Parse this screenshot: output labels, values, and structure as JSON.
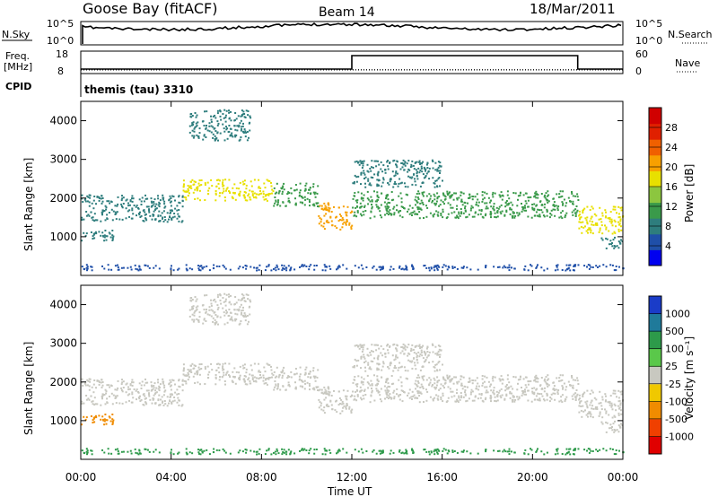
{
  "header": {
    "station": "Goose Bay (fitACF)",
    "beam": "Beam 14",
    "date": "18/Mar/2011"
  },
  "noise_panel": {
    "left_label": "N.Sky",
    "right_label": "N.Search",
    "left_ticks": [
      "10^5",
      "10^0"
    ],
    "right_ticks": [
      "10^5",
      "10^0"
    ]
  },
  "freq_panel": {
    "left_label_1": "Freq.",
    "left_label_2": "[MHz]",
    "right_label": "Nave",
    "left_ticks": [
      "18",
      "8"
    ],
    "right_ticks": [
      "60",
      "0"
    ]
  },
  "cpid_panel": {
    "label": "CPID",
    "text": "themis (tau) 3310"
  },
  "power_colorbar": {
    "title": "Power [dB]",
    "ticks": [
      "4",
      "8",
      "12",
      "16",
      "20",
      "24",
      "28"
    ],
    "colors": [
      "#0000f0",
      "#1f4fa8",
      "#2e7d7d",
      "#3a9a4a",
      "#8cc63f",
      "#e8e000",
      "#f7a000",
      "#f06000",
      "#e02000",
      "#d00000"
    ]
  },
  "velocity_colorbar": {
    "title": "Velocity [m s⁻¹]",
    "ticks": [
      "1000",
      "500",
      "100",
      "25",
      "-25",
      "-100",
      "-500",
      "-1000"
    ],
    "colors": [
      "#1a3cc8",
      "#1f7a9a",
      "#2d9a4a",
      "#5ac84a",
      "#c8c8c0",
      "#f0c800",
      "#f08c00",
      "#f04000",
      "#e00000"
    ]
  },
  "chart_data": {
    "type": "heatmap",
    "xlabel": "Time UT",
    "x_tick_labels": [
      "00:00",
      "04:00",
      "08:00",
      "12:00",
      "16:00",
      "20:00",
      "00:00"
    ],
    "xlim_hours": [
      0,
      24
    ],
    "panels": [
      {
        "name": "power",
        "ylabel": "Slant Range [km]",
        "ylim": [
          0,
          4500
        ],
        "y_ticks": [
          1000,
          2000,
          3000,
          4000
        ],
        "colorbar_title": "Power [dB]",
        "echo_bands": [
          {
            "start_hour": 0.0,
            "end_hour": 1.5,
            "low_km": 900,
            "high_km": 1200,
            "power_db": 8
          },
          {
            "start_hour": 0.0,
            "end_hour": 4.5,
            "low_km": 1400,
            "high_km": 2100,
            "power_db": 8
          },
          {
            "start_hour": 4.5,
            "end_hour": 8.5,
            "low_km": 1950,
            "high_km": 2500,
            "power_db": 16
          },
          {
            "start_hour": 4.8,
            "end_hour": 7.5,
            "low_km": 3500,
            "high_km": 4300,
            "power_db": 8
          },
          {
            "start_hour": 8.5,
            "end_hour": 10.5,
            "low_km": 1800,
            "high_km": 2400,
            "power_db": 12
          },
          {
            "start_hour": 10.5,
            "end_hour": 12.0,
            "low_km": 1200,
            "high_km": 1900,
            "power_db": 20
          },
          {
            "start_hour": 12.0,
            "end_hour": 22.0,
            "low_km": 1500,
            "high_km": 2200,
            "power_db": 12
          },
          {
            "start_hour": 12.0,
            "end_hour": 16.0,
            "low_km": 2300,
            "high_km": 3000,
            "power_db": 8
          },
          {
            "start_hour": 22.0,
            "end_hour": 24.0,
            "low_km": 1100,
            "high_km": 1800,
            "power_db": 16
          },
          {
            "start_hour": 23.0,
            "end_hour": 24.0,
            "low_km": 700,
            "high_km": 1000,
            "power_db": 8
          },
          {
            "start_hour": 0.0,
            "end_hour": 24.0,
            "low_km": 150,
            "high_km": 300,
            "power_db": 4
          }
        ]
      },
      {
        "name": "velocity",
        "ylabel": "Slant Range [km]",
        "ylim": [
          0,
          4500
        ],
        "y_ticks": [
          1000,
          2000,
          3000,
          4000
        ],
        "colorbar_title": "Velocity [m s⁻¹]",
        "echo_bands": [
          {
            "start_hour": 0.0,
            "end_hour": 1.5,
            "low_km": 900,
            "high_km": 1200,
            "velocity_ms": -100
          },
          {
            "start_hour": 0.0,
            "end_hour": 4.5,
            "low_km": 1400,
            "high_km": 2100,
            "velocity_ms": 0
          },
          {
            "start_hour": 4.5,
            "end_hour": 8.5,
            "low_km": 1950,
            "high_km": 2500,
            "velocity_ms": 0
          },
          {
            "start_hour": 4.8,
            "end_hour": 7.5,
            "low_km": 3500,
            "high_km": 4300,
            "velocity_ms": 0
          },
          {
            "start_hour": 8.5,
            "end_hour": 10.5,
            "low_km": 1800,
            "high_km": 2400,
            "velocity_ms": 0
          },
          {
            "start_hour": 10.5,
            "end_hour": 12.0,
            "low_km": 1200,
            "high_km": 1900,
            "velocity_ms": 0
          },
          {
            "start_hour": 12.0,
            "end_hour": 22.0,
            "low_km": 1500,
            "high_km": 2200,
            "velocity_ms": 0
          },
          {
            "start_hour": 12.0,
            "end_hour": 16.0,
            "low_km": 2300,
            "high_km": 3000,
            "velocity_ms": 0
          },
          {
            "start_hour": 22.0,
            "end_hour": 24.0,
            "low_km": 1100,
            "high_km": 1800,
            "velocity_ms": 0
          },
          {
            "start_hour": 23.0,
            "end_hour": 24.0,
            "low_km": 700,
            "high_km": 1000,
            "velocity_ms": 0
          },
          {
            "start_hour": 0.0,
            "end_hour": 24.0,
            "low_km": 150,
            "high_km": 300,
            "velocity_ms": 100
          }
        ]
      }
    ],
    "frequency_mhz": {
      "hours": [
        0,
        12.0,
        12.0,
        22.0,
        22.0,
        24
      ],
      "values": [
        10,
        10,
        16,
        16,
        10,
        10
      ]
    },
    "nave": {
      "hours": [
        0,
        24
      ],
      "values": [
        10,
        10
      ]
    }
  }
}
